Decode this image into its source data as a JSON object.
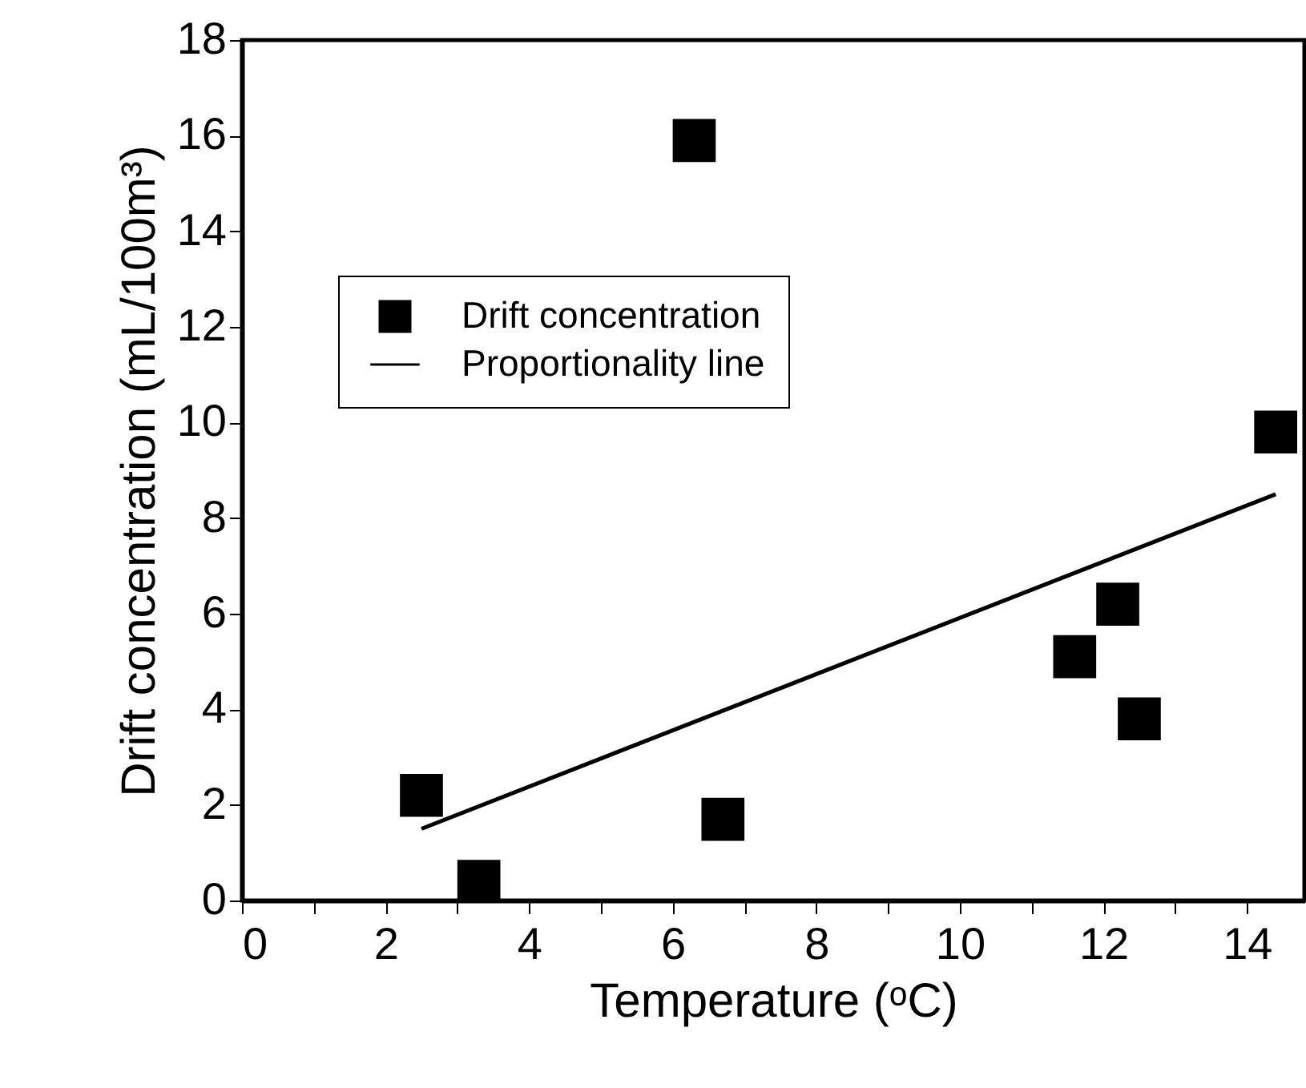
{
  "chart_data": {
    "type": "scatter",
    "xlabel": "Temperature (ᵒC)",
    "ylabel": "Drift concentration (mL/100m³)",
    "xlim": [
      0,
      14.8
    ],
    "ylim": [
      0,
      18
    ],
    "xticks": [
      0,
      {
        "value": 1,
        "label": null
      },
      2,
      {
        "value": 3,
        "label": null
      },
      4,
      {
        "value": 5,
        "label": null
      },
      6,
      {
        "value": 7,
        "label": null
      },
      8,
      {
        "value": 9,
        "label": null
      },
      10,
      {
        "value": 11,
        "label": null
      },
      12,
      {
        "value": 13,
        "label": null
      },
      14
    ],
    "yticks": [
      0,
      2,
      4,
      6,
      8,
      10,
      12,
      14,
      16,
      18
    ],
    "grid": false,
    "legend": "top left",
    "series": [
      {
        "name": "Drift concentration",
        "marker": "square",
        "color": "#000000",
        "x": [
          2.5,
          3.3,
          6.3,
          6.7,
          11.6,
          12.2,
          12.5,
          14.4
        ],
        "values": [
          2.2,
          0.4,
          15.9,
          1.7,
          5.1,
          6.2,
          3.8,
          9.8
        ]
      },
      {
        "name": "Proportionality line",
        "type": "line",
        "line_style": "solid",
        "color": "#000000",
        "x": [
          2.5,
          14.4
        ],
        "values": [
          1.5,
          8.5
        ]
      }
    ]
  }
}
